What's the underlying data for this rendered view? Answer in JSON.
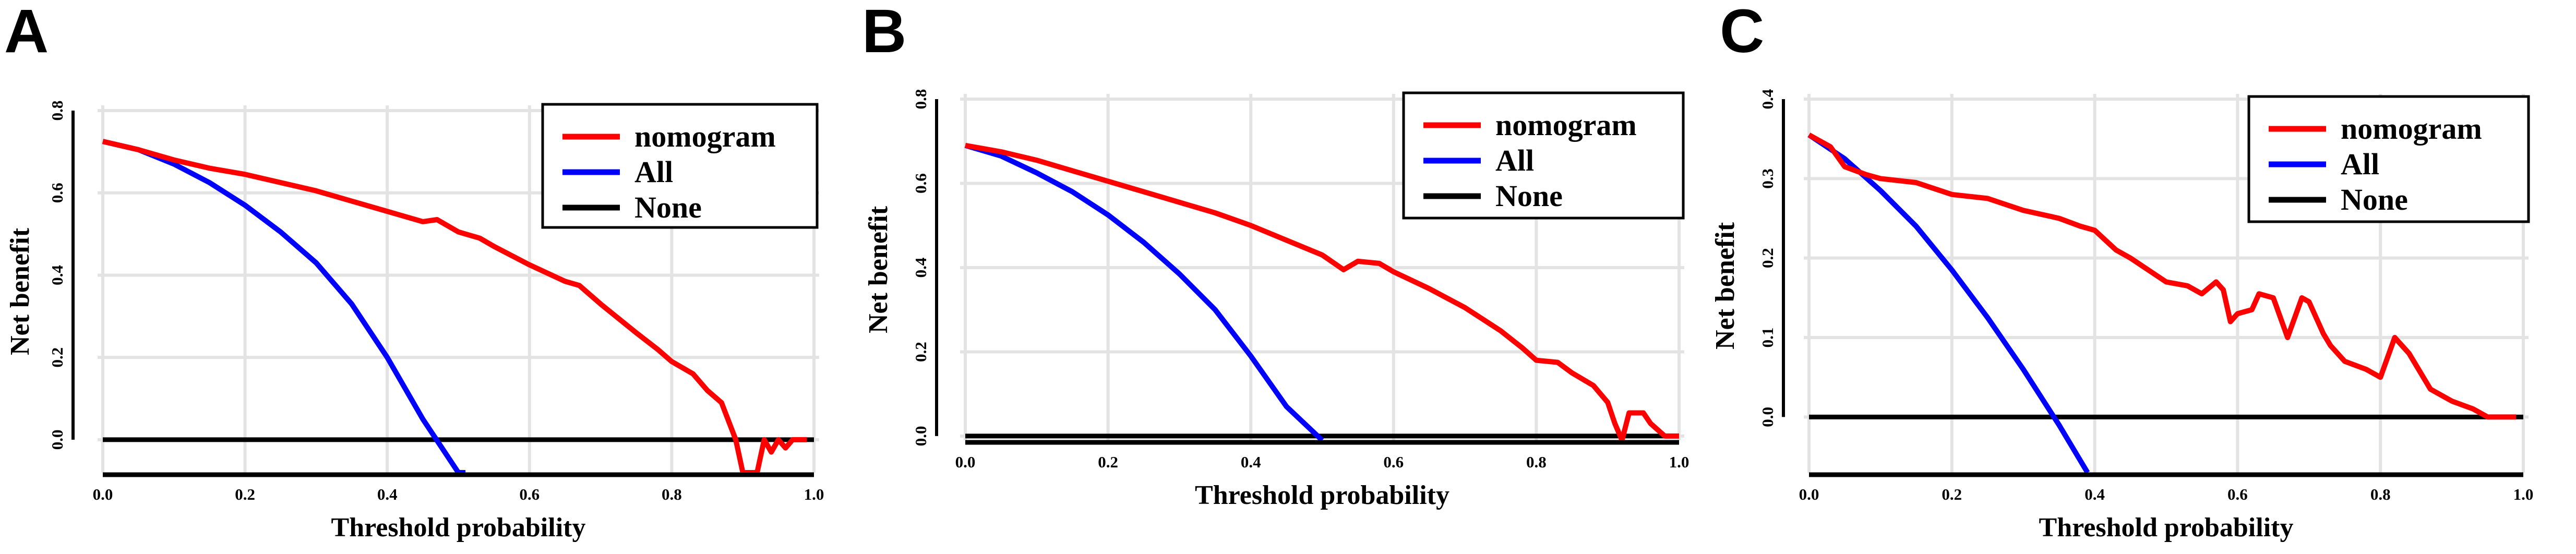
{
  "panels": [
    "A",
    "B",
    "C"
  ],
  "chart_data": [
    {
      "type": "line",
      "panel": "A",
      "xlabel": "Threshold probability",
      "ylabel": "Net benefit",
      "xlim": [
        0,
        1
      ],
      "ylim": [
        -0.08,
        0.8
      ],
      "xticks": [
        "0.0",
        "0.2",
        "0.4",
        "0.6",
        "0.8",
        "1.0"
      ],
      "yticks": [
        "0.0",
        "0.2",
        "0.4",
        "0.6",
        "0.8"
      ],
      "legend_position": "top-right",
      "grid": true,
      "series": [
        {
          "name": "nomogram",
          "color": "#ff0000",
          "x": [
            0,
            0.05,
            0.1,
            0.15,
            0.2,
            0.25,
            0.3,
            0.35,
            0.4,
            0.45,
            0.47,
            0.5,
            0.53,
            0.55,
            0.6,
            0.65,
            0.67,
            0.7,
            0.75,
            0.78,
            0.8,
            0.83,
            0.85,
            0.87,
            0.89,
            0.9,
            0.91,
            0.92,
            0.93,
            0.94,
            0.95,
            0.96,
            0.97,
            0.98,
            0.99
          ],
          "y": [
            0.725,
            0.705,
            0.68,
            0.66,
            0.645,
            0.625,
            0.605,
            0.58,
            0.555,
            0.53,
            0.535,
            0.505,
            0.49,
            0.47,
            0.425,
            0.385,
            0.375,
            0.33,
            0.26,
            0.22,
            0.19,
            0.16,
            0.12,
            0.09,
            0.0,
            -0.08,
            -0.08,
            -0.08,
            0.0,
            -0.03,
            0.0,
            -0.02,
            0.0,
            0.0,
            0.0
          ]
        },
        {
          "name": "All",
          "color": "#0000ff",
          "x": [
            0,
            0.05,
            0.1,
            0.15,
            0.2,
            0.25,
            0.3,
            0.35,
            0.4,
            0.45,
            0.5,
            0.51
          ],
          "y": [
            0.725,
            0.705,
            0.67,
            0.625,
            0.57,
            0.505,
            0.43,
            0.33,
            0.2,
            0.05,
            -0.08,
            -0.08
          ]
        },
        {
          "name": "None",
          "color": "#000000",
          "x": [
            0,
            1
          ],
          "y": [
            0,
            0
          ]
        }
      ]
    },
    {
      "type": "line",
      "panel": "B",
      "xlabel": "Threshold probability",
      "ylabel": "Net benefit",
      "xlim": [
        0,
        1
      ],
      "ylim": [
        -0.01,
        0.8
      ],
      "xticks": [
        "0.0",
        "0.2",
        "0.4",
        "0.6",
        "0.8",
        "1.0"
      ],
      "yticks": [
        "0.0",
        "0.2",
        "0.4",
        "0.6",
        "0.8"
      ],
      "legend_position": "top-right",
      "grid": true,
      "series": [
        {
          "name": "nomogram",
          "color": "#ff0000",
          "x": [
            0,
            0.05,
            0.1,
            0.15,
            0.2,
            0.25,
            0.3,
            0.35,
            0.4,
            0.45,
            0.5,
            0.53,
            0.55,
            0.58,
            0.6,
            0.65,
            0.7,
            0.75,
            0.78,
            0.8,
            0.83,
            0.85,
            0.88,
            0.9,
            0.91,
            0.92,
            0.93,
            0.95,
            0.96,
            0.98,
            1.0
          ],
          "y": [
            0.69,
            0.675,
            0.655,
            0.63,
            0.605,
            0.58,
            0.555,
            0.53,
            0.5,
            0.465,
            0.43,
            0.395,
            0.415,
            0.41,
            0.39,
            0.35,
            0.305,
            0.25,
            0.21,
            0.18,
            0.175,
            0.15,
            0.12,
            0.08,
            0.03,
            -0.01,
            0.055,
            0.055,
            0.03,
            0.0,
            0.0
          ]
        },
        {
          "name": "All",
          "color": "#0000ff",
          "x": [
            0,
            0.05,
            0.1,
            0.15,
            0.2,
            0.25,
            0.3,
            0.35,
            0.4,
            0.45,
            0.5
          ],
          "y": [
            0.69,
            0.665,
            0.625,
            0.58,
            0.525,
            0.46,
            0.385,
            0.3,
            0.19,
            0.07,
            -0.01
          ]
        },
        {
          "name": "None",
          "color": "#000000",
          "x": [
            0,
            1
          ],
          "y": [
            0,
            0
          ]
        }
      ]
    },
    {
      "type": "line",
      "panel": "C",
      "xlabel": "Threshold probability",
      "ylabel": "Net benefit",
      "xlim": [
        0,
        1
      ],
      "ylim": [
        -0.07,
        0.4
      ],
      "xticks": [
        "0.0",
        "0.2",
        "0.4",
        "0.6",
        "0.8",
        "1.0"
      ],
      "yticks": [
        "0.0",
        "0.1",
        "0.2",
        "0.3",
        "0.4"
      ],
      "legend_position": "top-right",
      "grid": true,
      "series": [
        {
          "name": "nomogram",
          "color": "#ff0000",
          "x": [
            0,
            0.03,
            0.05,
            0.08,
            0.1,
            0.15,
            0.2,
            0.25,
            0.3,
            0.35,
            0.38,
            0.4,
            0.43,
            0.45,
            0.5,
            0.53,
            0.55,
            0.57,
            0.58,
            0.59,
            0.6,
            0.62,
            0.63,
            0.65,
            0.67,
            0.69,
            0.7,
            0.72,
            0.73,
            0.75,
            0.78,
            0.8,
            0.82,
            0.84,
            0.87,
            0.9,
            0.93,
            0.95,
            0.99
          ],
          "y": [
            0.355,
            0.34,
            0.315,
            0.305,
            0.3,
            0.295,
            0.28,
            0.275,
            0.26,
            0.25,
            0.24,
            0.235,
            0.21,
            0.2,
            0.17,
            0.165,
            0.155,
            0.17,
            0.16,
            0.12,
            0.13,
            0.135,
            0.155,
            0.15,
            0.1,
            0.15,
            0.145,
            0.105,
            0.09,
            0.07,
            0.06,
            0.05,
            0.1,
            0.08,
            0.035,
            0.02,
            0.01,
            0.0,
            0.0
          ]
        },
        {
          "name": "All",
          "color": "#0000ff",
          "x": [
            0,
            0.05,
            0.1,
            0.15,
            0.2,
            0.25,
            0.3,
            0.35,
            0.39
          ],
          "y": [
            0.355,
            0.325,
            0.285,
            0.24,
            0.185,
            0.125,
            0.06,
            -0.01,
            -0.07
          ]
        },
        {
          "name": "None",
          "color": "#000000",
          "x": [
            0,
            1
          ],
          "y": [
            0,
            0
          ]
        }
      ]
    }
  ]
}
